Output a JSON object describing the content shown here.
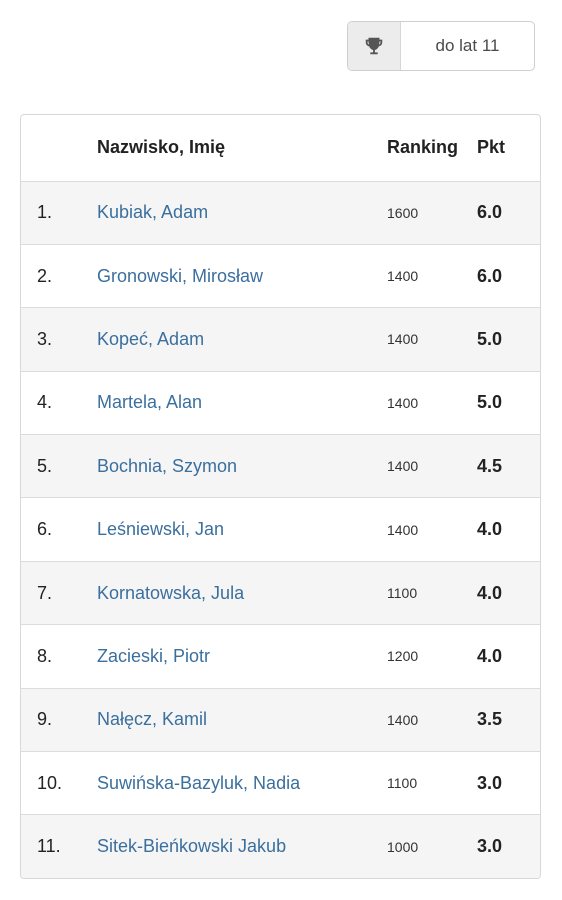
{
  "category": {
    "icon": "trophy-icon",
    "value": "do lat 11"
  },
  "table": {
    "headers": {
      "no": "",
      "name": "Nazwisko, Imię",
      "ranking": "Ranking",
      "points": "Pkt"
    },
    "rows": [
      {
        "no": "1.",
        "name": "Kubiak, Adam",
        "ranking": "1600",
        "points": "6.0"
      },
      {
        "no": "2.",
        "name": "Gronowski, Mirosław",
        "ranking": "1400",
        "points": "6.0"
      },
      {
        "no": "3.",
        "name": "Kopeć, Adam",
        "ranking": "1400",
        "points": "5.0"
      },
      {
        "no": "4.",
        "name": "Martela, Alan",
        "ranking": "1400",
        "points": "5.0"
      },
      {
        "no": "5.",
        "name": "Bochnia, Szymon",
        "ranking": "1400",
        "points": "4.5"
      },
      {
        "no": "6.",
        "name": "Leśniewski, Jan",
        "ranking": "1400",
        "points": "4.0"
      },
      {
        "no": "7.",
        "name": "Kornatowska, Jula",
        "ranking": "1100",
        "points": "4.0"
      },
      {
        "no": "8.",
        "name": "Zacieski, Piotr",
        "ranking": "1200",
        "points": "4.0"
      },
      {
        "no": "9.",
        "name": "Nałęcz, Kamil",
        "ranking": "1400",
        "points": "3.5"
      },
      {
        "no": "10.",
        "name": "Suwińska-Bazyluk, Nadia",
        "ranking": "1100",
        "points": "3.0"
      },
      {
        "no": "11.",
        "name": "Sitek-Bieńkowski Jakub",
        "ranking": "1000",
        "points": "3.0"
      }
    ]
  }
}
